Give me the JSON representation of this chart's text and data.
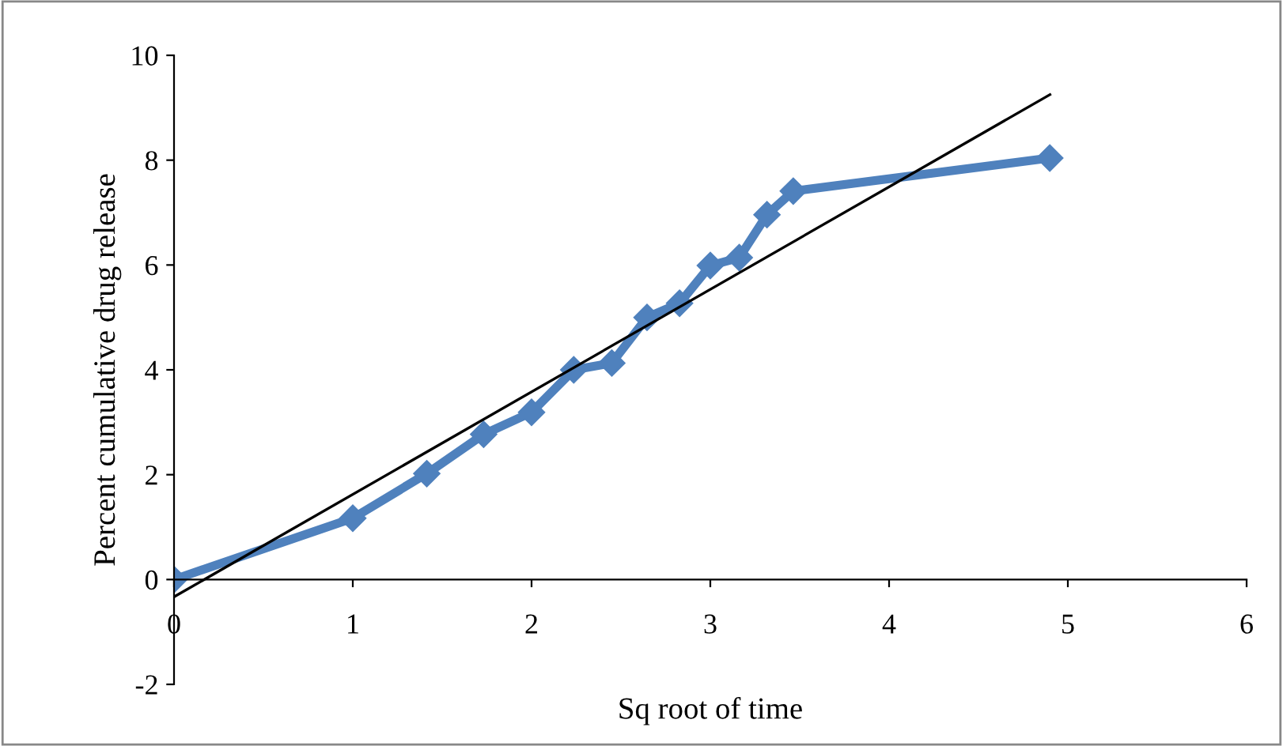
{
  "chart_data": {
    "type": "line",
    "xlabel": "Sq root of time",
    "ylabel": "Percent cumulative drug release",
    "xlim": [
      0,
      6
    ],
    "ylim": [
      -2,
      10
    ],
    "xticks": [
      0,
      1,
      2,
      3,
      4,
      5,
      6
    ],
    "yticks": [
      -2,
      0,
      2,
      4,
      6,
      8,
      10
    ],
    "grid": false,
    "legend": false,
    "series": [
      {
        "color": "#4f81bd",
        "marker": "diamond",
        "x": [
          0,
          1,
          1.414,
          1.732,
          2,
          2.236,
          2.449,
          2.646,
          2.828,
          3,
          3.162,
          3.317,
          3.464,
          4.899
        ],
        "values": [
          0,
          1.17,
          2.02,
          2.77,
          3.19,
          4.0,
          4.13,
          5.0,
          5.27,
          5.99,
          6.14,
          6.96,
          7.41,
          8.04
        ]
      },
      {
        "color": "#000000",
        "marker": "none",
        "x": [
          0,
          4.9
        ],
        "values": [
          -0.33,
          9.25
        ]
      }
    ]
  }
}
